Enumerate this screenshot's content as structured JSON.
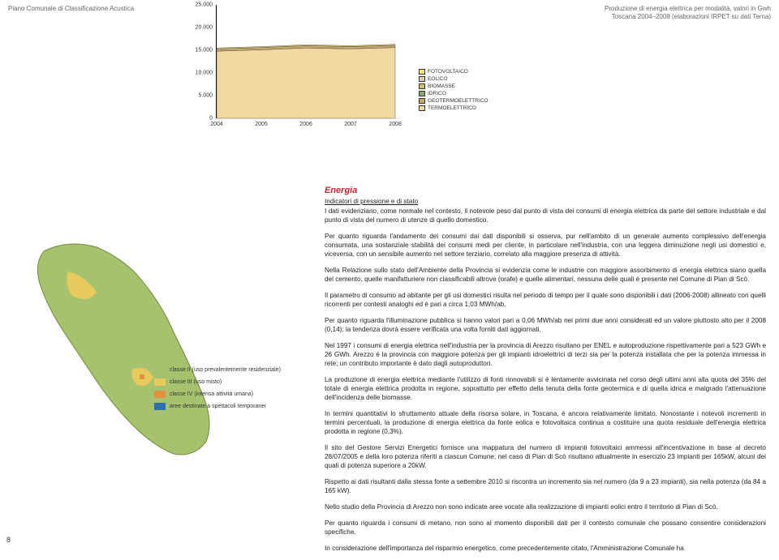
{
  "header": {
    "left": "Piano Comunale di Classificazione Acustica",
    "right_line1": "Produzione di energia elettrica per modalità, valori in Gwh",
    "right_line2": "Toscana 2004–2008 (elaborazioni IRPET su dati Terna)"
  },
  "page_number": "8",
  "chart": {
    "type": "area",
    "x_labels": [
      "2004",
      "2005",
      "2006",
      "2007",
      "2008"
    ],
    "y_ticks": [
      "0",
      "5.000",
      "10.000",
      "15.000",
      "20.000",
      "25.000"
    ],
    "y_max": 25000,
    "legend": [
      {
        "label": "FOTOVOLTAICO",
        "color": "#f6e27a"
      },
      {
        "label": "EOLICO",
        "color": "#d9d0b0"
      },
      {
        "label": "BIOMASSE",
        "color": "#c9c070"
      },
      {
        "label": "IDRICO",
        "color": "#8aa66f"
      },
      {
        "label": "GEOTERMOELETTRICO",
        "color": "#c7a86a"
      },
      {
        "label": "TERMOELETTRICO",
        "color": "#f0d8a0"
      }
    ],
    "stack_top_values": [
      15500,
      15800,
      16200,
      16000,
      16300
    ],
    "plot_bg": "#ffffff",
    "axis_color": "#000000",
    "top_band_color": "#f6e27a",
    "mid_band_color": "#c7a86a",
    "base_band_color": "#f0d8a0",
    "top_band_bottom": [
      15300,
      15600,
      16000,
      15800,
      16100
    ],
    "mid_band_bottom": [
      14800,
      15100,
      15500,
      15300,
      15600
    ],
    "area_outline": "#555555"
  },
  "map": {
    "shape_fill": "#a6c26f",
    "shape_stroke": "#6e8a3a",
    "accent1": "#e8c95b",
    "accent2": "#e09040",
    "accent3": "#2e6fb3",
    "legend": [
      {
        "label": "classe II (uso prevalentemente residenziale)",
        "color": "#a6c26f"
      },
      {
        "label": "classe III (uso misto)",
        "color": "#e8c95b"
      },
      {
        "label": "classe IV (intensa attività umana)",
        "color": "#e09040"
      },
      {
        "label": "aree destinate a spettacoli temporanei",
        "color": "#2e6fb3"
      }
    ]
  },
  "text": {
    "section_title": "Energia",
    "subtitle": "Indicatori di pressione e di stato",
    "p1": "I dati evidenziano, come normale nel contesto, il notevole peso dal punto di vista dei consumi di energia elettrica da parte del settore industriale e dal punto di vista del numero di utenze di quello domestico.",
    "p2": "Per quanto riguarda l'andamento dei consumi dai dati disponibili si osserva, pur nell'ambito di un generale aumento complessivo dell'energia consumata, una sostanziale stabilità dei consumi medi per cliente, in particolare nell'industria, con una leggera diminuzione negli usi domestici e, viceversa, con un sensibile aumento nel settore terziario, correlato alla maggiore presenza di attività.",
    "p3": "Nella Relazione sullo stato dell'Ambiente della Provincia si evidenzia come le industrie con maggiore assorbimento di energia elettrica siano quella del cemento, quelle manifatturiere non classificabili altrove (orafe) e quelle alimentari, nessuna delle quali è presente nel Comune di Pian di Scò.",
    "p4": "Il parametro di consumo ad abitante per gli usi domestici risulta nel periodo di tempo per il quale sono disponibili i dati (2006-2008) allineato con quelli ricorrenti per contesti analoghi ed è pari a circa 1,03 MWh/ab.",
    "p5": "Per quanto riguarda l'illuminazione pubblica si hanno valori pari a 0,06 MWh/ab nei primi due anni considerati ed un valore piuttosto alto per il 2008 (0,14); la tendenza dovrà essere verificata una volta forniti dati aggiornati.",
    "p6": "Nel 1997 i consumi di energia elettrica nell'industria per la provincia di Arezzo risultano per ENEL e autoproduzione rispettivamente pari a 523 GWh e 26 GWh. Arezzo è la provincia con maggiore potenza per gli impianti idroelettrici di terzi sia per la potenza installata che per la potenza immessa in rete; un contributo importante è dato dagli autoproduttori.",
    "p7": "La produzione di energia elettrica mediante l'utilizzo di fonti rinnovabili si è lentamente avvicinata nel corso degli ultimi anni alla quota del 35% del totale di energia elettrica prodotta in regione, soprattutto per effetto della tenuta della fonte geotermica e di quella idrica e malgrado l'attenuazione dell'incidenza delle biomasse.",
    "p8": "In termini quantitativi lo sfruttamento attuale della risorsa solare, in Toscana, è ancora relativamente limitato. Nonostante i notevoli incrementi in termini percentuali, la produzione di energia elettrica da fonte eolica e fotovoltaica continua a costituire una quota residuale dell'energia elettrica prodotta in regione (0,3%).",
    "p9": "Il sito del Gestore Servizi Energetici fornisce una mappatura del numero di impianti fotovoltaici ammessi all'incentivazione in base al decreto 28/07/2005 e della loro potenza riferiti a ciascun Comune; nel caso di Pian di Scò risultano attualmente in esercizio 23 impianti per 165kW, alcuni dei quali di potenza superiore a 20kW.",
    "p10": "Rispetto ai dati risultanti dalla stessa fonte a settembre 2010 si riscontra un incremento sia nel numero (da 9 a 23 impianti), sia nella potenza (da 84 a 165 kW).",
    "p11": "Nello studio della Provincia di Arezzo non sono indicate aree vocate alla realizzazione di impianti eolici entro il territorio di Pian di Scò.",
    "p12": "Per quanto riguarda i consumi di metano, non sono al momento disponibili dati per il contesto comunale che possano consentire considerazioni specifiche.",
    "p13": "In considerazione dell'importanza del risparmio energetico, come precedentemente citato, l'Amministrazione Comunale ha"
  }
}
